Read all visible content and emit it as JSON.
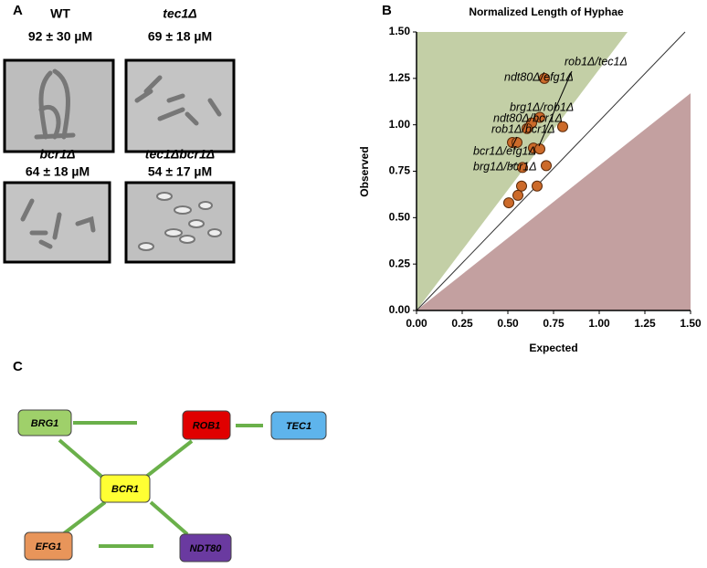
{
  "panel_labels": [
    "A",
    "B",
    "C"
  ],
  "micrographs": [
    {
      "name": "WT",
      "length": "92 ± 30 µM"
    },
    {
      "name": "tec1Δ",
      "length": "69 ± 18 µM"
    },
    {
      "name": "bcr1Δ",
      "length": "64 ± 18 µM"
    },
    {
      "name": "tec1Δbcr1Δ",
      "length": "54 ± 17 µM"
    }
  ],
  "chart_data": {
    "type": "scatter",
    "title": "Normalized Length of Hyphae",
    "x_label": "Expected",
    "y_label": "Observed",
    "x": [
      0.7,
      0.8,
      0.675,
      0.63,
      0.605,
      0.525,
      0.55,
      0.64,
      0.675,
      0.58,
      0.71,
      0.575,
      0.66,
      0.555,
      0.505
    ],
    "values": [
      1.25,
      0.99,
      1.04,
      1.01,
      0.98,
      0.905,
      0.905,
      0.875,
      0.87,
      0.77,
      0.78,
      0.67,
      0.67,
      0.62,
      0.58
    ],
    "color": "#cc6a2a",
    "annotations": [
      "rob1Δ/tec1Δ",
      "ndt80Δ/efg1Δ",
      "brg1Δ/rob1Δ",
      "ndt80Δ/bcr1Δ",
      "rob1Δ/bcr1Δ",
      "bcr1Δ/efg1Δ",
      "brg1Δ/bcr1Δ"
    ],
    "xlim": [
      0,
      1.5
    ],
    "ylim": [
      0,
      1.5
    ],
    "xticks": [
      {
        "value": 0,
        "label": "0.00"
      },
      {
        "value": 0.25,
        "label": "0.25"
      },
      {
        "value": 0.5,
        "label": "0.50"
      },
      {
        "value": 0.75,
        "label": "0.75"
      },
      {
        "value": 1,
        "label": "1.00"
      },
      {
        "value": 1.25,
        "label": "1.25"
      },
      {
        "value": 1.5,
        "label": "1.50"
      }
    ],
    "yticks": [
      {
        "value": 0,
        "label": "0.00"
      },
      {
        "value": 0.25,
        "label": "0.25"
      },
      {
        "value": 0.5,
        "label": "0.50"
      },
      {
        "value": 0.75,
        "label": "0.75"
      },
      {
        "value": 1,
        "label": "1.00"
      },
      {
        "value": 1.25,
        "label": "1.25"
      },
      {
        "value": 1.5,
        "label": "1.50"
      }
    ]
  },
  "network": {
    "nodes": [
      "BRG1",
      "ROB1",
      "TEC1",
      "BCR1",
      "EFG1",
      "NDT80"
    ]
  }
}
